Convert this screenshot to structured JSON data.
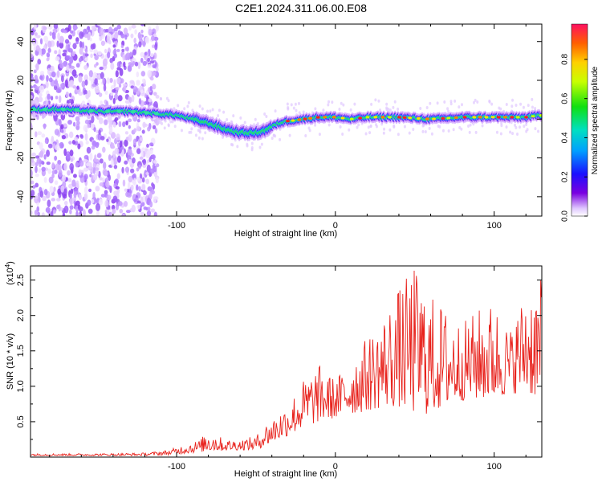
{
  "title": "C2E1.2024.311.06.00.E08",
  "colors": {
    "snr_line": "#e8221c",
    "axis": "#000000"
  },
  "chart_data": [
    {
      "type": "heatmap",
      "xlabel": "Height of straight line (km)",
      "ylabel": "Frequency (Hz)",
      "xlim": [
        -192,
        130
      ],
      "ylim": [
        -50,
        49
      ],
      "xticks": [
        -100,
        0,
        100
      ],
      "yticks": [
        -40,
        -20,
        0,
        20,
        40
      ],
      "colorbar": {
        "label": "Normalized spectral amplitude",
        "range": [
          0,
          0.98
        ],
        "ticks": [
          0.0,
          0.2,
          0.4,
          0.6,
          0.8
        ],
        "colormap": "rainbow"
      },
      "ridge": {
        "x": [
          -190,
          -170,
          -150,
          -130,
          -115,
          -100,
          -90,
          -80,
          -70,
          -60,
          -50,
          -45,
          -40,
          -35,
          -30,
          -20,
          -10,
          0,
          10,
          20,
          40,
          60,
          80,
          100,
          120,
          130
        ],
        "y": [
          5,
          5,
          4,
          4,
          3,
          2,
          0,
          -2,
          -5,
          -7,
          -7,
          -6,
          -4,
          -2,
          -1,
          0,
          1,
          1,
          0,
          1,
          1,
          0,
          1,
          1,
          1,
          2
        ]
      },
      "noise_region_x": [
        -192,
        -112
      ]
    },
    {
      "type": "line",
      "xlabel": "Height of straight line (km)",
      "ylabel": "SNR (10 * v/v)",
      "yexponent_label": "(x10",
      "yexponent_sup": "4",
      "yexponent_close": ")",
      "xlim": [
        -192,
        130
      ],
      "ylim": [
        0,
        27000
      ],
      "xticks": [
        -100,
        0,
        100
      ],
      "yticks": [
        5000,
        10000,
        15000,
        20000,
        25000
      ],
      "ytick_labels": [
        "0.5",
        "1.0",
        "1.5",
        "2.0",
        "2.5"
      ],
      "envelope": {
        "x": [
          -192,
          -150,
          -120,
          -105,
          -95,
          -85,
          -80,
          -70,
          -60,
          -50,
          -45,
          -40,
          -30,
          -20,
          -10,
          0,
          10,
          20,
          30,
          40,
          50,
          60,
          70,
          80,
          90,
          100,
          110,
          120,
          130
        ],
        "low": [
          200,
          200,
          200,
          300,
          500,
          700,
          800,
          900,
          1000,
          1000,
          1500,
          2000,
          3000,
          4000,
          5000,
          5500,
          6000,
          6500,
          7000,
          7000,
          6000,
          6000,
          7000,
          8000,
          8000,
          8000,
          9000,
          9000,
          8000
        ],
        "high": [
          500,
          500,
          600,
          1000,
          1800,
          2500,
          4000,
          2500,
          2500,
          3000,
          4500,
          5500,
          7500,
          11000,
          13000,
          11000,
          14000,
          17000,
          20000,
          24000,
          27000,
          23000,
          21000,
          19000,
          21000,
          22000,
          18000,
          24000,
          25000
        ]
      }
    }
  ]
}
